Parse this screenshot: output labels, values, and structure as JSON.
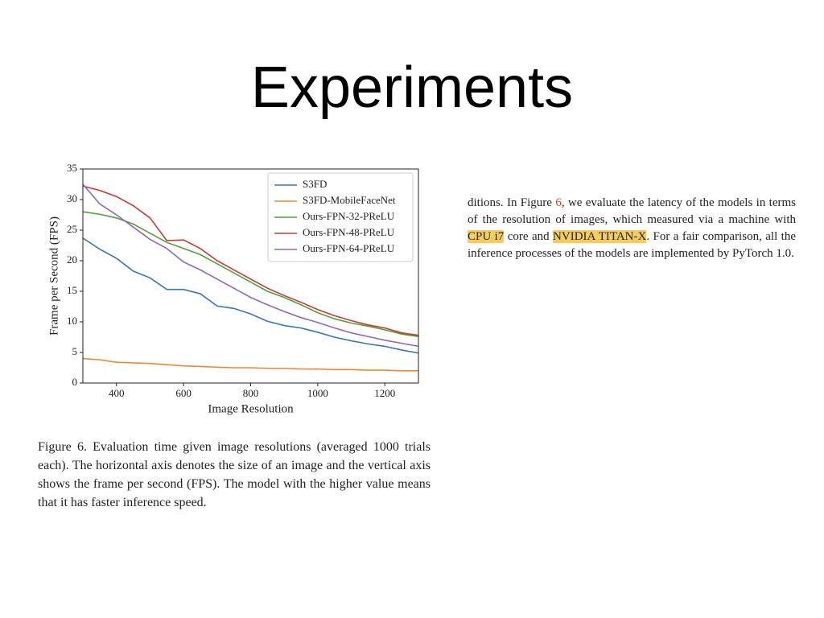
{
  "title": "Experiments",
  "chart_data": {
    "type": "line",
    "xlabel": "Image Resolution",
    "ylabel": "Frame per Second (FPS)",
    "x": [
      300,
      350,
      400,
      450,
      500,
      550,
      600,
      650,
      700,
      750,
      800,
      850,
      900,
      950,
      1000,
      1050,
      1100,
      1150,
      1200,
      1250,
      1300
    ],
    "xlim": [
      300,
      1300
    ],
    "xticks": [
      400,
      600,
      800,
      1000,
      1200
    ],
    "ylim": [
      0,
      35
    ],
    "yticks": [
      0,
      5,
      10,
      15,
      20,
      25,
      30,
      35
    ],
    "legend": "upper right",
    "series": [
      {
        "name": "S3FD",
        "color": "#3b75af",
        "values": [
          23.7,
          21.9,
          20.4,
          18.3,
          17.2,
          15.3,
          15.3,
          14.6,
          12.6,
          12.2,
          11.3,
          10.1,
          9.4,
          9.0,
          8.3,
          7.5,
          6.9,
          6.4,
          6.0,
          5.4,
          4.9
        ]
      },
      {
        "name": "S3FD-MobileFaceNet",
        "color": "#ef8636",
        "values": [
          4.0,
          3.8,
          3.4,
          3.3,
          3.2,
          3.0,
          2.8,
          2.7,
          2.6,
          2.5,
          2.5,
          2.4,
          2.4,
          2.3,
          2.3,
          2.2,
          2.2,
          2.1,
          2.1,
          2.0,
          2.0
        ]
      },
      {
        "name": "Ours-FPN-32-PReLU",
        "color": "#519e3e",
        "values": [
          28.0,
          27.6,
          27.0,
          26.0,
          24.5,
          23.0,
          22.0,
          21.0,
          19.5,
          18.0,
          16.5,
          15.0,
          14.0,
          12.8,
          11.5,
          10.5,
          9.8,
          9.3,
          8.7,
          8.0,
          7.6
        ]
      },
      {
        "name": "Ours-FPN-48-PReLU",
        "color": "#c53a32",
        "values": [
          32.2,
          31.5,
          30.5,
          29.0,
          27.0,
          23.3,
          23.4,
          22.0,
          20.0,
          18.5,
          17.0,
          15.5,
          14.3,
          13.2,
          12.0,
          11.0,
          10.2,
          9.5,
          9.0,
          8.2,
          7.8
        ]
      },
      {
        "name": "Ours-FPN-64-PReLU",
        "color": "#8d69b8",
        "values": [
          32.5,
          29.3,
          27.5,
          25.5,
          23.5,
          22.0,
          19.8,
          18.5,
          17.0,
          15.5,
          14.0,
          12.8,
          11.7,
          10.7,
          9.9,
          9.0,
          8.2,
          7.6,
          7.0,
          6.5,
          6.0
        ]
      }
    ]
  },
  "caption": "Figure 6. Evaluation time given image resolutions (averaged 1000 trials each). The horizontal axis denotes the size of an image and the vertical axis shows the frame per second (FPS). The model with the higher value means that it has faster inference speed.",
  "paragraph": [
    "ditions. In Figure ",
    "6",
    ", we evaluate the latency of the models in terms of the resolution of images, which measured via a machine with ",
    "CPU i7",
    " core and ",
    "NVIDIA TITAN-X",
    ". For a fair comparison, all the inference processes of the models are implemented by PyTorch 1.0."
  ]
}
